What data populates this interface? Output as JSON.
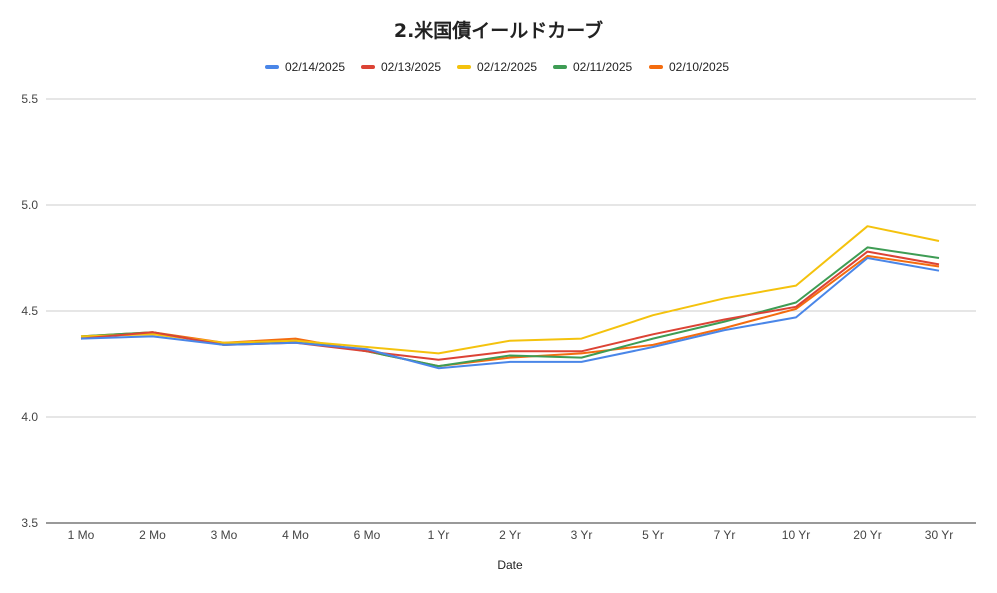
{
  "chart_data": {
    "type": "line",
    "title": "2.米国債イールドカーブ",
    "xlabel": "Date",
    "ylabel": "",
    "ylim": [
      3.5,
      5.5
    ],
    "yticks": [
      "3.5",
      "4.0",
      "4.5",
      "5.0",
      "5.5"
    ],
    "grid": true,
    "legend": "top",
    "categories": [
      "1 Mo",
      "2 Mo",
      "3 Mo",
      "4 Mo",
      "6 Mo",
      "1 Yr",
      "2 Yr",
      "3 Yr",
      "5 Yr",
      "7 Yr",
      "10 Yr",
      "20 Yr",
      "30 Yr"
    ],
    "series": [
      {
        "name": "02/14/2025",
        "color": "#4a86e8",
        "values": [
          4.37,
          4.38,
          4.34,
          4.35,
          4.32,
          4.23,
          4.26,
          4.26,
          4.33,
          4.41,
          4.47,
          4.75,
          4.69
        ]
      },
      {
        "name": "02/13/2025",
        "color": "#dc4335",
        "values": [
          4.37,
          4.4,
          4.34,
          4.35,
          4.31,
          4.27,
          4.31,
          4.31,
          4.39,
          4.46,
          4.52,
          4.78,
          4.72
        ]
      },
      {
        "name": "02/12/2025",
        "color": "#f4c20d",
        "values": [
          4.38,
          4.39,
          4.35,
          4.36,
          4.33,
          4.3,
          4.36,
          4.37,
          4.48,
          4.56,
          4.62,
          4.9,
          4.83
        ]
      },
      {
        "name": "02/11/2025",
        "color": "#3e9c54",
        "values": [
          4.38,
          4.4,
          4.34,
          4.36,
          4.31,
          4.24,
          4.29,
          4.28,
          4.37,
          4.45,
          4.54,
          4.8,
          4.75
        ]
      },
      {
        "name": "02/10/2025",
        "color": "#f46c0f",
        "values": [
          4.38,
          4.4,
          4.35,
          4.37,
          4.31,
          4.24,
          4.28,
          4.3,
          4.34,
          4.42,
          4.51,
          4.76,
          4.71
        ]
      }
    ]
  }
}
